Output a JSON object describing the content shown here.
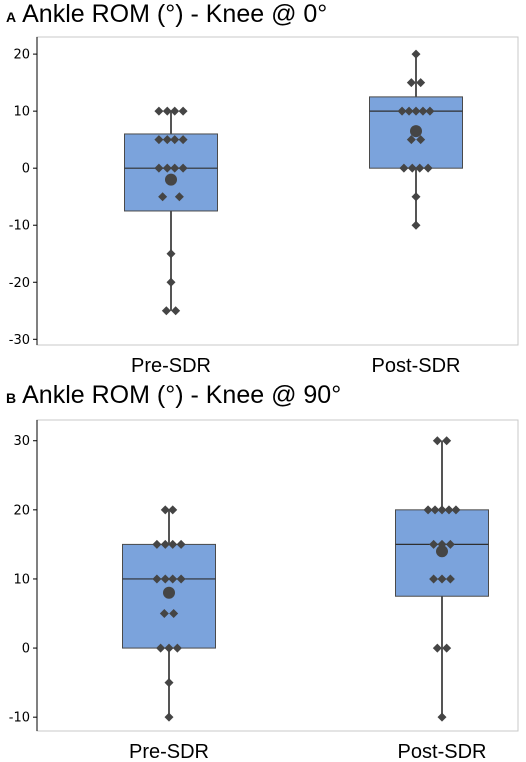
{
  "chart_data": [
    {
      "type": "box",
      "panel_letter": "A",
      "title": "Ankle ROM (°) - Knee @ 0°",
      "categories": [
        "Pre-SDR",
        "Post-SDR"
      ],
      "ylim": [
        -31,
        23
      ],
      "yticks": [
        -30,
        -20,
        -10,
        0,
        10,
        20
      ],
      "ytick_labels": [
        "-30",
        "-20",
        "-10",
        "0",
        "10",
        "20"
      ],
      "grid": false,
      "colors": {
        "box_fill": "#7ba3dc",
        "box_edge": "#4a4a4a",
        "point": "#454545",
        "whisker": "#555555"
      },
      "boxes": [
        {
          "category": "Pre-SDR",
          "min": -25,
          "q1": -7.5,
          "median": 0,
          "q3": 6,
          "max": 10,
          "mean": -2,
          "points": [
            {
              "y": 10,
              "dx": -0.13
            },
            {
              "y": 10,
              "dx": -0.04
            },
            {
              "y": 10,
              "dx": 0.04
            },
            {
              "y": 10,
              "dx": 0.13
            },
            {
              "y": 5,
              "dx": -0.13
            },
            {
              "y": 5,
              "dx": -0.04
            },
            {
              "y": 5,
              "dx": 0.04
            },
            {
              "y": 5,
              "dx": 0.13
            },
            {
              "y": 0,
              "dx": -0.13
            },
            {
              "y": 0,
              "dx": -0.04
            },
            {
              "y": 0,
              "dx": 0.04
            },
            {
              "y": 0,
              "dx": 0.13
            },
            {
              "y": -5,
              "dx": -0.09
            },
            {
              "y": -5,
              "dx": 0.09
            },
            {
              "y": -15,
              "dx": 0
            },
            {
              "y": -20,
              "dx": 0
            },
            {
              "y": -25,
              "dx": -0.05
            },
            {
              "y": -25,
              "dx": 0.05
            }
          ]
        },
        {
          "category": "Post-SDR",
          "min": -10,
          "q1": 0,
          "median": 10,
          "q3": 12.5,
          "max": 20,
          "mean": 6.5,
          "points": [
            {
              "y": 20,
              "dx": 0
            },
            {
              "y": 15,
              "dx": -0.05
            },
            {
              "y": 15,
              "dx": 0.05
            },
            {
              "y": 10,
              "dx": -0.15
            },
            {
              "y": 10,
              "dx": -0.075
            },
            {
              "y": 10,
              "dx": 0
            },
            {
              "y": 10,
              "dx": 0.075
            },
            {
              "y": 10,
              "dx": 0.15
            },
            {
              "y": 5,
              "dx": -0.05
            },
            {
              "y": 5,
              "dx": 0.05
            },
            {
              "y": 0,
              "dx": -0.13
            },
            {
              "y": 0,
              "dx": -0.04
            },
            {
              "y": 0,
              "dx": 0.04
            },
            {
              "y": 0,
              "dx": 0.13
            },
            {
              "y": -5,
              "dx": 0
            },
            {
              "y": -10,
              "dx": 0
            }
          ]
        }
      ]
    },
    {
      "type": "box",
      "panel_letter": "B",
      "title": "Ankle ROM (°) - Knee @ 90°",
      "categories": [
        "Pre-SDR",
        "Post-SDR"
      ],
      "ylim": [
        -12,
        33
      ],
      "yticks": [
        -10,
        0,
        10,
        20,
        30
      ],
      "ytick_labels": [
        "-10",
        "0",
        "10",
        "20",
        "30"
      ],
      "grid": false,
      "colors": {
        "box_fill": "#7ba3dc",
        "box_edge": "#4a4a4a",
        "point": "#454545",
        "whisker": "#555555"
      },
      "boxes": [
        {
          "category": "Pre-SDR",
          "min": -10,
          "q1": 0,
          "median": 10,
          "q3": 15,
          "max": 20,
          "mean": 8,
          "points": [
            {
              "y": 20,
              "dx": -0.04
            },
            {
              "y": 20,
              "dx": 0.04
            },
            {
              "y": 15,
              "dx": -0.13
            },
            {
              "y": 15,
              "dx": -0.04
            },
            {
              "y": 15,
              "dx": 0.04
            },
            {
              "y": 15,
              "dx": 0.13
            },
            {
              "y": 10,
              "dx": -0.13
            },
            {
              "y": 10,
              "dx": -0.04
            },
            {
              "y": 10,
              "dx": 0.04
            },
            {
              "y": 10,
              "dx": 0.13
            },
            {
              "y": 5,
              "dx": -0.05
            },
            {
              "y": 5,
              "dx": 0.05
            },
            {
              "y": 0,
              "dx": -0.09
            },
            {
              "y": 0,
              "dx": 0
            },
            {
              "y": 0,
              "dx": 0.09
            },
            {
              "y": -5,
              "dx": 0
            },
            {
              "y": -10,
              "dx": 0
            }
          ]
        },
        {
          "category": "Post-SDR",
          "min": -10,
          "q1": 7.5,
          "median": 15,
          "q3": 20,
          "max": 30,
          "mean": 14,
          "points": [
            {
              "y": 30,
              "dx": -0.05
            },
            {
              "y": 30,
              "dx": 0.05
            },
            {
              "y": 20,
              "dx": -0.15
            },
            {
              "y": 20,
              "dx": -0.075
            },
            {
              "y": 20,
              "dx": 0
            },
            {
              "y": 20,
              "dx": 0.075
            },
            {
              "y": 20,
              "dx": 0.15
            },
            {
              "y": 15,
              "dx": -0.09
            },
            {
              "y": 15,
              "dx": 0
            },
            {
              "y": 15,
              "dx": 0.09
            },
            {
              "y": 10,
              "dx": -0.09
            },
            {
              "y": 10,
              "dx": 0
            },
            {
              "y": 10,
              "dx": 0.09
            },
            {
              "y": 0,
              "dx": -0.05
            },
            {
              "y": 0,
              "dx": 0.05
            },
            {
              "y": -10,
              "dx": 0
            }
          ]
        }
      ]
    }
  ]
}
